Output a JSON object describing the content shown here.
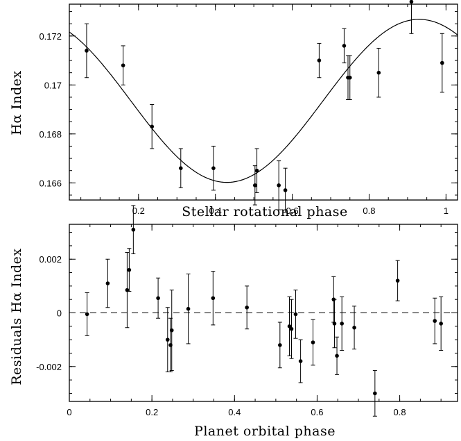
{
  "chart_data": [
    {
      "type": "scatter",
      "xlabel": "Stellar rotational phase",
      "ylabel": "Hα Index",
      "xlim": [
        0.02,
        1.03
      ],
      "ylim": [
        0.1653,
        0.1733
      ],
      "xticks": [
        0.2,
        0.4,
        0.6,
        0.8,
        1
      ],
      "xtick_labels": [
        "0.2",
        "0.4",
        "0.6",
        "0.8",
        "1"
      ],
      "yticks": [
        0.166,
        0.168,
        0.17,
        0.172
      ],
      "ytick_labels": [
        "0.166",
        "0.168",
        "0.17",
        "0.172"
      ],
      "grid": false,
      "series": [
        {
          "kind": "points_with_errorbars",
          "x": [
            0.065,
            0.16,
            0.235,
            0.31,
            0.395,
            0.503,
            0.508,
            0.565,
            0.582,
            0.67,
            0.735,
            0.745,
            0.75,
            0.825,
            0.91,
            0.99
          ],
          "y": [
            0.1714,
            0.1708,
            0.1683,
            0.1666,
            0.1666,
            0.1659,
            0.1665,
            0.1659,
            0.1657,
            0.171,
            0.1716,
            0.1703,
            0.1703,
            0.1705,
            0.1734,
            0.1709
          ],
          "yerr": [
            0.0011,
            0.0008,
            0.0009,
            0.0008,
            0.0009,
            0.0008,
            0.0009,
            0.001,
            0.0009,
            0.0007,
            0.0007,
            0.0009,
            0.0009,
            0.001,
            0.0013,
            0.0012
          ]
        },
        {
          "kind": "line",
          "function": "sinusoid",
          "offset": 0.16935,
          "amplitude": 0.00333,
          "max_at_phase": 0.93
        }
      ]
    },
    {
      "type": "scatter",
      "xlabel": "Planet orbital phase",
      "ylabel": "Residuals Hα Index",
      "xlim": [
        0,
        0.94
      ],
      "ylim": [
        -0.0033,
        0.0033
      ],
      "xticks": [
        0,
        0.2,
        0.4,
        0.6,
        0.8
      ],
      "xtick_labels": [
        "0",
        "0.2",
        "0.4",
        "0.6",
        "0.8"
      ],
      "yticks": [
        -0.002,
        0,
        0.002
      ],
      "ytick_labels": [
        "-0.002",
        "0",
        "0.002"
      ],
      "grid": false,
      "series": [
        {
          "kind": "points_with_errorbars",
          "x": [
            0.043,
            0.093,
            0.14,
            0.145,
            0.155,
            0.215,
            0.238,
            0.245,
            0.248,
            0.288,
            0.348,
            0.43,
            0.51,
            0.533,
            0.538,
            0.548,
            0.56,
            0.59,
            0.64,
            0.642,
            0.648,
            0.66,
            0.69,
            0.74,
            0.795,
            0.885,
            0.9
          ],
          "y": [
            -5e-05,
            0.0011,
            0.00085,
            0.0016,
            0.0031,
            0.00055,
            -0.001,
            -0.0012,
            -0.00065,
            0.00015,
            0.00055,
            0.0002,
            -0.0012,
            -0.0005,
            -0.0006,
            -5e-05,
            -0.0018,
            -0.0011,
            0.0005,
            -0.0004,
            -0.0016,
            -0.0004,
            -0.00055,
            -0.003,
            0.0012,
            -0.0003,
            -0.0004
          ],
          "yerr": [
            0.0008,
            0.0009,
            0.0014,
            0.0008,
            0.0009,
            0.00075,
            0.0012,
            0.001,
            0.0015,
            0.0013,
            0.001,
            0.0008,
            0.00085,
            0.0011,
            0.0011,
            0.0009,
            0.0008,
            0.00085,
            0.00085,
            0.0009,
            0.0007,
            0.001,
            0.0008,
            0.00085,
            0.00075,
            0.00085,
            0.001
          ]
        },
        {
          "kind": "hline",
          "y": 0,
          "style": "dashed"
        }
      ]
    }
  ]
}
